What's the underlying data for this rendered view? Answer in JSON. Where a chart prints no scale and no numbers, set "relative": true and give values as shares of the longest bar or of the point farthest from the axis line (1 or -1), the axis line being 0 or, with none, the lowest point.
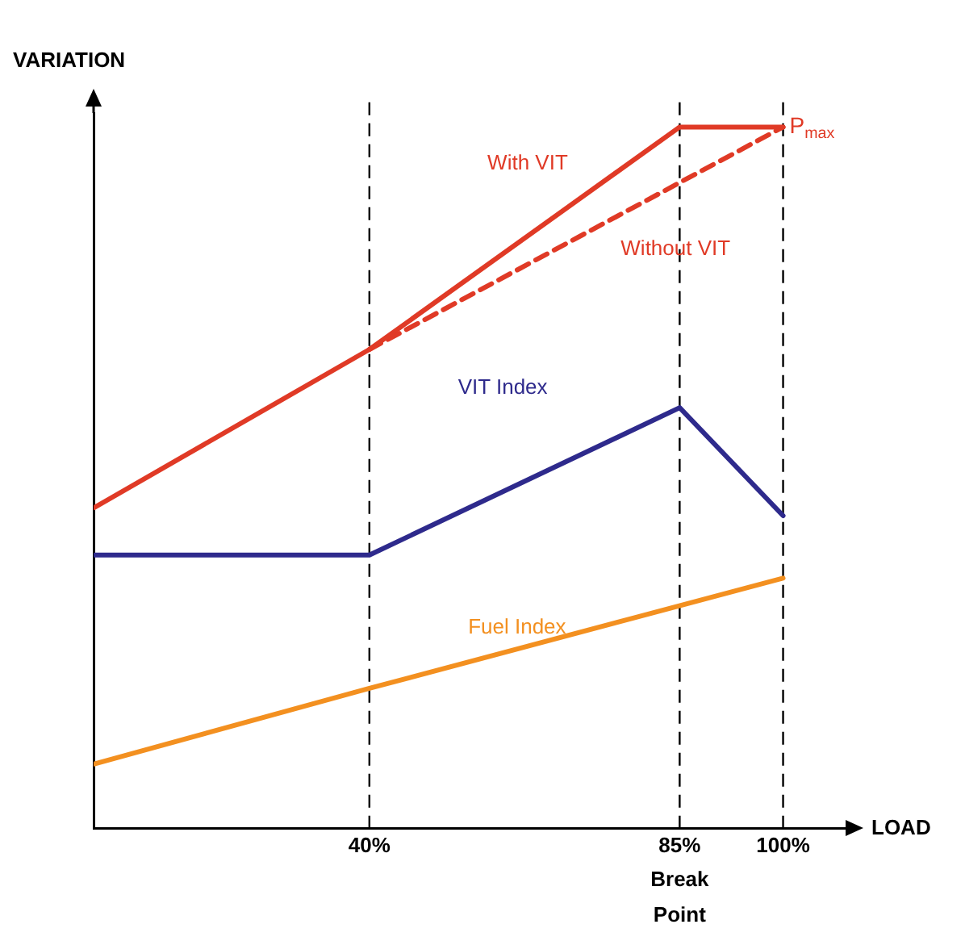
{
  "chart_data": {
    "type": "line",
    "relative": true,
    "xlabel": "LOAD",
    "ylabel": "VARIATION",
    "xlim": [
      0,
      110
    ],
    "xticks": [
      {
        "value": 40,
        "label": "40%"
      },
      {
        "value": 85,
        "label": "85%"
      },
      {
        "value": 100,
        "label": "100%"
      }
    ],
    "series": [
      {
        "name": "With VIT",
        "color": "#e03a26",
        "x": [
          0,
          40,
          85,
          100
        ],
        "values": [
          0.457,
          0.683,
          1,
          1
        ]
      },
      {
        "name": "Without VIT",
        "color": "#e03a26",
        "line_style": "dashed",
        "x": [
          40,
          100
        ],
        "values": [
          0.683,
          1
        ]
      },
      {
        "name": "VIT Index",
        "color": "#2e2a8c",
        "x": [
          0,
          40,
          85,
          100
        ],
        "values": [
          0.39,
          0.39,
          0.6,
          0.446
        ]
      },
      {
        "name": "Fuel Index",
        "color": "#f39020",
        "x": [
          0,
          40,
          100
        ],
        "values": [
          0.092,
          0.2,
          0.357
        ]
      }
    ],
    "ref_lines": [
      {
        "axis": "x",
        "value": 40,
        "color": "#000000",
        "line_style": "dashed"
      },
      {
        "axis": "x",
        "value": 85,
        "color": "#000000",
        "line_style": "dashed"
      },
      {
        "axis": "x",
        "value": 100,
        "color": "#000000",
        "line_style": "dashed"
      }
    ],
    "annotations": [
      {
        "text": "P$_{max}$",
        "x": 100,
        "y": 1
      },
      {
        "text": "Break Point",
        "x": 85,
        "y": 0
      }
    ],
    "marker": "none",
    "line_style": "solid",
    "grid": false,
    "legend": false
  }
}
